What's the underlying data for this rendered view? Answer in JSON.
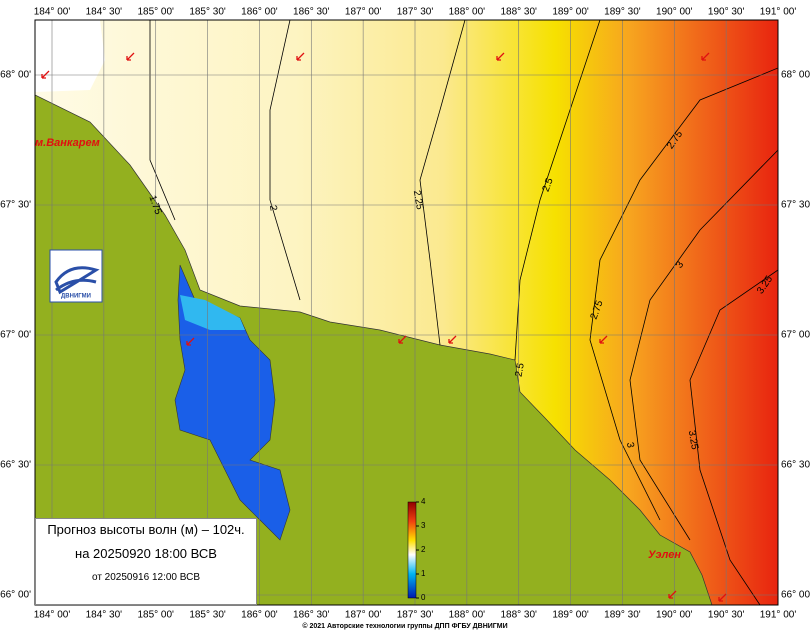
{
  "map": {
    "longitude_labels": [
      "184° 00'",
      "184° 30'",
      "185° 00'",
      "185° 30'",
      "186° 00'",
      "186° 30'",
      "187° 00'",
      "187° 30'",
      "188° 00'",
      "188° 30'",
      "189° 00'",
      "189° 30'",
      "190° 00'",
      "190° 30'",
      "191° 00'"
    ],
    "latitude_labels": [
      "68° 00'",
      "67° 30'",
      "67° 00'",
      "66° 30'",
      "66° 00'"
    ],
    "places": [
      "м.Ванкарем",
      "Уэлен"
    ],
    "contour_labels": [
      "1.75",
      "2",
      "2.25",
      "2.5",
      "2.5",
      "2.75",
      "2.75",
      "3",
      "3",
      "3.25",
      "3.25"
    ],
    "logo_text": "ДВНИГМИ",
    "legend": {
      "title": "Прогноз высоты волн (м) – 102ч.",
      "valid": "на 20250920 18:00 ВСВ",
      "issued": "от 20250916 12:00 ВСВ"
    },
    "colorbar": {
      "ticks": [
        0,
        1,
        2,
        3,
        4
      ],
      "lim": [
        0,
        4
      ]
    },
    "copyright": "© 2021 Авторские технологии группы ДПП ФГБУ ДВНИГМИ"
  }
}
